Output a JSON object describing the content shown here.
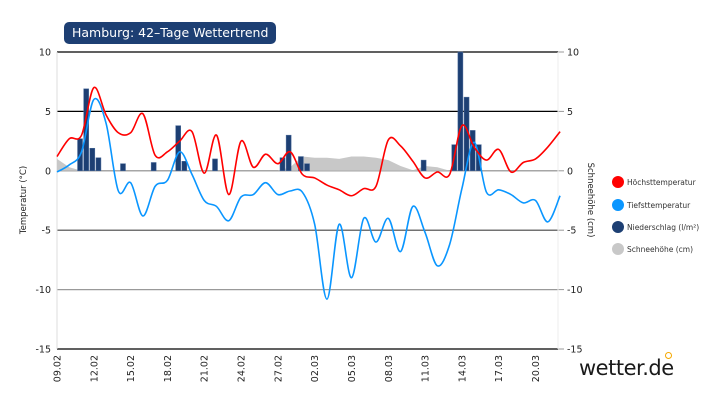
{
  "chart_data": {
    "type": "line",
    "title": "Hamburg: 42–Tage Wettertrend",
    "ylabel": "Temperatur (°C)",
    "y2label": "Schneehöhe (cm)",
    "ylim": [
      -15,
      10
    ],
    "y2lim": [
      -15,
      10
    ],
    "yticks": [
      "10",
      "5",
      "0",
      "-5",
      "-10",
      "-15"
    ],
    "xtick_labels": [
      "09.02",
      "12.02",
      "15.02",
      "18.02",
      "21.02",
      "24.02",
      "27.02",
      "02.03",
      "05.03",
      "08.03",
      "11.03",
      "14.03",
      "17.03",
      "20.03"
    ],
    "dates": [
      "09.02",
      "10.02",
      "11.02",
      "12.02",
      "13.02",
      "14.02",
      "15.02",
      "16.02",
      "17.02",
      "18.02",
      "19.02",
      "20.02",
      "21.02",
      "22.02",
      "23.02",
      "24.02",
      "25.02",
      "26.02",
      "27.02",
      "28.02",
      "01.03",
      "02.03",
      "03.03",
      "04.03",
      "05.03",
      "06.03",
      "07.03",
      "08.03",
      "09.03",
      "10.03",
      "11.03",
      "12.03",
      "13.03",
      "14.03",
      "15.03",
      "16.03",
      "17.03",
      "18.03",
      "19.03",
      "20.03",
      "21.03",
      "22.03"
    ],
    "series": [
      {
        "name": "Höchsttemperatur",
        "color": "#ff0000",
        "values": [
          1.2,
          2.7,
          3.0,
          7.0,
          4.7,
          3.2,
          3.2,
          4.8,
          1.3,
          1.6,
          2.5,
          3.3,
          -0.2,
          3.0,
          -2.0,
          2.5,
          0.3,
          1.4,
          0.6,
          1.6,
          -0.3,
          -0.6,
          -1.2,
          -1.6,
          -2.1,
          -1.5,
          -1.3,
          2.6,
          2.1,
          0.8,
          -0.6,
          -0.1,
          -0.3,
          3.8,
          2.0,
          0.9,
          1.8,
          -0.1,
          0.7,
          1.0,
          2.0,
          3.3
        ]
      },
      {
        "name": "Tiefsttemperatur",
        "color": "#0a96ff",
        "values": [
          -0.1,
          0.5,
          1.6,
          6.0,
          4.0,
          -1.7,
          -1.0,
          -3.8,
          -1.3,
          -0.8,
          1.6,
          -0.3,
          -2.5,
          -3.0,
          -4.2,
          -2.2,
          -2.0,
          -1.0,
          -2.0,
          -1.7,
          -1.8,
          -4.5,
          -10.8,
          -4.5,
          -9.0,
          -4.0,
          -6.0,
          -4.0,
          -6.8,
          -3.0,
          -5.2,
          -8.0,
          -6.2,
          -1.5,
          2.4,
          -1.8,
          -1.6,
          -2.0,
          -2.7,
          -2.5,
          -4.3,
          -2.1
        ]
      },
      {
        "name": "Niederschlag (l/m²)",
        "color": "#1d3f73",
        "type": "bar",
        "values": [
          {
            "date": "11.02",
            "hour": "00",
            "value": 2.7
          },
          {
            "date": "11.02",
            "hour": "12",
            "value": 6.9
          },
          {
            "date": "12.02",
            "hour": "00",
            "value": 1.9
          },
          {
            "date": "12.02",
            "hour": "12",
            "value": 1.1
          },
          {
            "date": "14.02",
            "hour": "12",
            "value": 0.6
          },
          {
            "date": "17.02",
            "hour": "00",
            "value": 0.7
          },
          {
            "date": "19.02",
            "hour": "00",
            "value": 3.8
          },
          {
            "date": "19.02",
            "hour": "12",
            "value": 0.8
          },
          {
            "date": "22.02",
            "hour": "00",
            "value": 1.0
          },
          {
            "date": "27.02",
            "hour": "12",
            "value": 1.1
          },
          {
            "date": "28.02",
            "hour": "00",
            "value": 3.0
          },
          {
            "date": "01.03",
            "hour": "00",
            "value": 1.2
          },
          {
            "date": "01.03",
            "hour": "12",
            "value": 0.6
          },
          {
            "date": "11.03",
            "hour": "00",
            "value": 0.9
          },
          {
            "date": "13.03",
            "hour": "12",
            "value": 2.2
          },
          {
            "date": "14.03",
            "hour": "00",
            "value": 10.0
          },
          {
            "date": "14.03",
            "hour": "12",
            "value": 6.2
          },
          {
            "date": "15.03",
            "hour": "00",
            "value": 3.4
          },
          {
            "date": "15.03",
            "hour": "12",
            "value": 2.2
          }
        ]
      },
      {
        "name": "Schneehöhe (cm)",
        "color": "#c8c8c8",
        "type": "area",
        "values": [
          1.0,
          0.3,
          0,
          0,
          0,
          0,
          0,
          0,
          0,
          0,
          0,
          0,
          0,
          0,
          0,
          0,
          0,
          0,
          0,
          0.3,
          1.2,
          1.1,
          1.1,
          1.0,
          1.2,
          1.2,
          1.1,
          0.9,
          0.4,
          0.05,
          0.4,
          0.3,
          0,
          0,
          0,
          0,
          0,
          0,
          0,
          0,
          0,
          0
        ]
      }
    ],
    "legend_position": "right",
    "grid": true
  },
  "logo": "wetter.de"
}
